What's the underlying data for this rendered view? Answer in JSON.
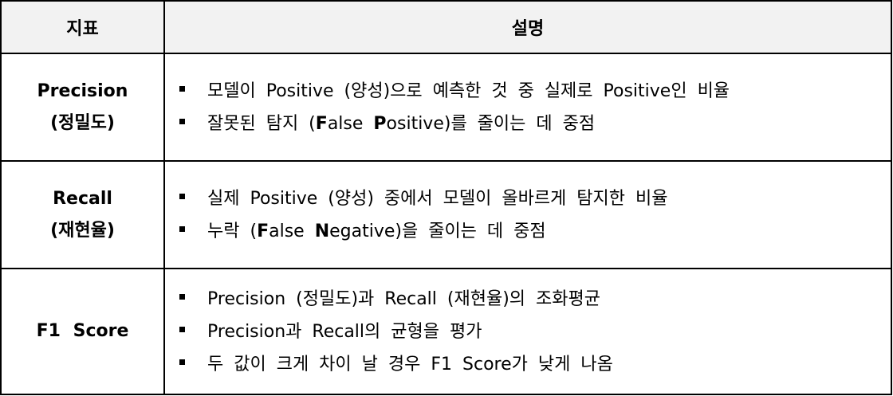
{
  "headers": {
    "metric": "지표",
    "description": "설명"
  },
  "rows": [
    {
      "name": "Precision",
      "kr": "(정밀도)",
      "bullets": [
        [
          "모델이 Positive (양성)으로 예측한 것 중 실제로 Positive인 비율"
        ],
        [
          "잘못된 탐지 (",
          "F",
          "alse ",
          "P",
          "ositive)를 줄이는 데 중점"
        ]
      ]
    },
    {
      "name": "Recall",
      "kr": "(재현율)",
      "bullets": [
        [
          "실제 Positive (양성) 중에서 모델이 올바르게 탐지한 비율"
        ],
        [
          "누락 (",
          "F",
          "alse ",
          "N",
          "egative)을 줄이는 데 중점"
        ]
      ]
    },
    {
      "name": "F1 Score",
      "bullets": [
        [
          "Precision (정밀도)과 Recall (재현율)의 조화평균"
        ],
        [
          "Precision과 Recall의 균형을 평가"
        ],
        [
          "두 값이 크게 차이 날 경우 F1 Score가 낮게 나옴"
        ]
      ]
    }
  ]
}
